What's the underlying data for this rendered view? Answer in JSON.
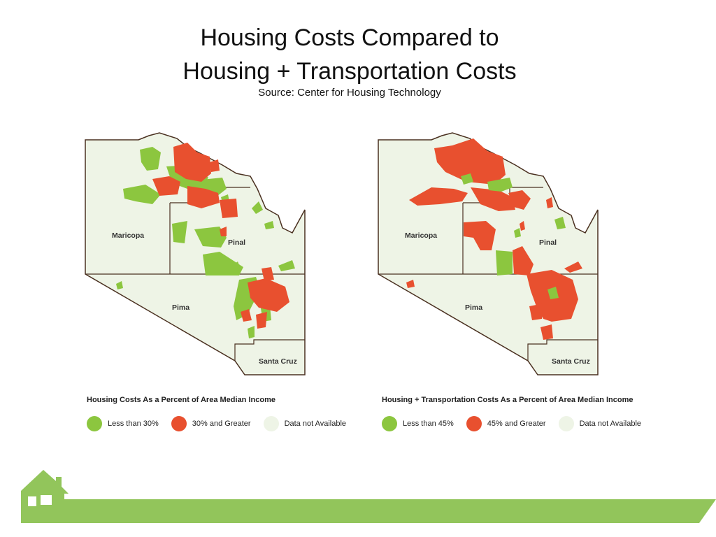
{
  "title_line1": "Housing Costs Compared to",
  "title_line2": "Housing + Transportation Costs",
  "source": "Source: Center for Housing Technology",
  "colors": {
    "green": "#8cc63f",
    "red": "#e8502f",
    "na": "#eef4e6",
    "boundary": "#4a3020"
  },
  "maps": [
    {
      "counties": [
        "Maricopa",
        "Pinal",
        "Pima",
        "Santa Cruz"
      ],
      "legend_title": "Housing Costs As a Percent of Area Median Income",
      "legend": [
        {
          "label": "Less than 30%",
          "color": "#8cc63f"
        },
        {
          "label": "30% and Greater",
          "color": "#e8502f"
        },
        {
          "label": "Data not Available",
          "color": "#eef4e6"
        }
      ]
    },
    {
      "counties": [
        "Maricopa",
        "Pinal",
        "Pima",
        "Santa Cruz"
      ],
      "legend_title": "Housing + Transportation Costs As a Percent of Area Median Income",
      "legend": [
        {
          "label": "Less than 45%",
          "color": "#8cc63f"
        },
        {
          "label": "45% and Greater",
          "color": "#e8502f"
        },
        {
          "label": "Data not Available",
          "color": "#eef4e6"
        }
      ]
    }
  ]
}
